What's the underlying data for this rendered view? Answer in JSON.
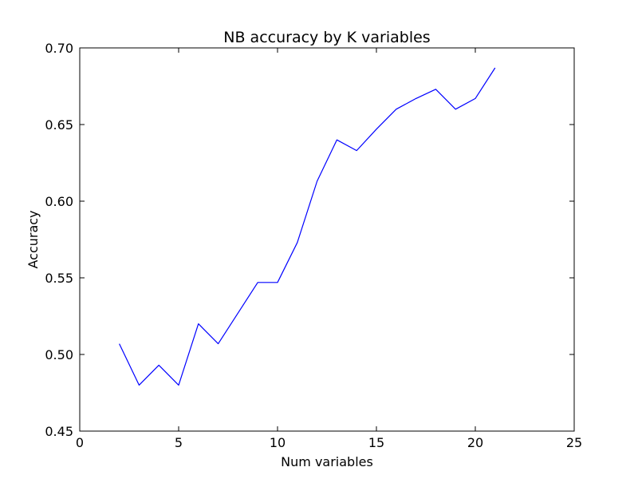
{
  "chart_data": {
    "type": "line",
    "title": "NB accuracy by K variables",
    "xlabel": "Num variables",
    "ylabel": "Accuracy",
    "xlim": [
      0,
      25
    ],
    "ylim": [
      0.45,
      0.7
    ],
    "xticks": [
      "0",
      "5",
      "10",
      "15",
      "20",
      "25"
    ],
    "yticks": [
      "0.45",
      "0.50",
      "0.55",
      "0.60",
      "0.65",
      "0.70"
    ],
    "grid": false,
    "legend": "none",
    "series": [
      {
        "color": "#0000ff",
        "x": [
          2,
          3,
          4,
          5,
          6,
          7,
          8,
          9,
          10,
          11,
          12,
          13,
          14,
          15,
          16,
          17,
          18,
          19,
          20,
          21
        ],
        "y": [
          0.507,
          0.48,
          0.493,
          0.48,
          0.52,
          0.507,
          0.527,
          0.547,
          0.547,
          0.573,
          0.613,
          0.64,
          0.633,
          0.647,
          0.66,
          0.667,
          0.673,
          0.66,
          0.667,
          0.687
        ]
      }
    ]
  }
}
